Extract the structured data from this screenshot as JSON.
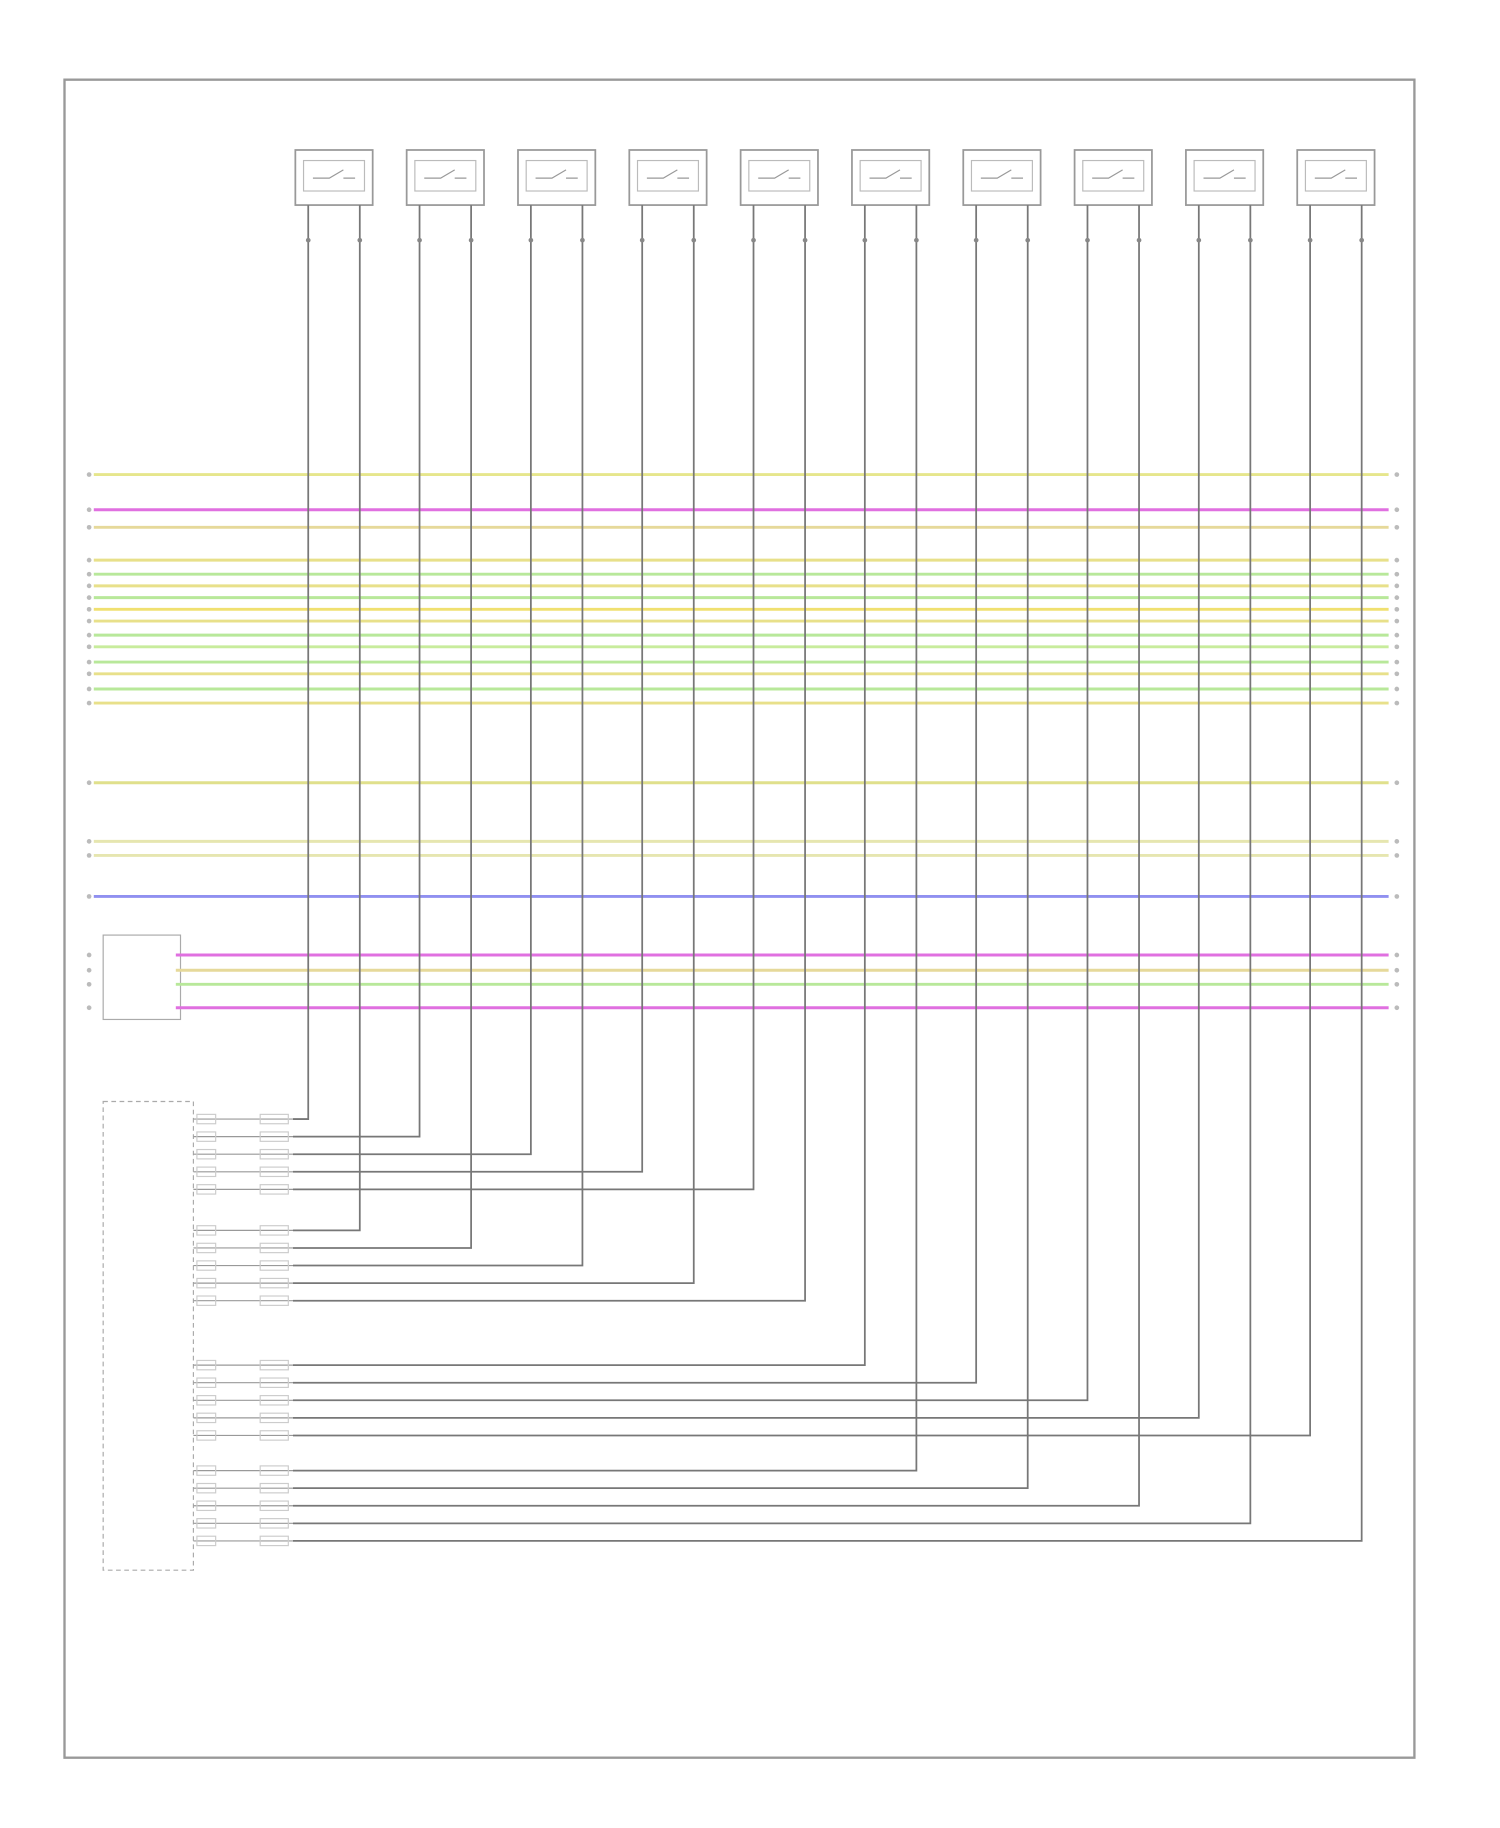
{
  "bus_wires": [
    {
      "color": "#e6e68c"
    },
    {
      "color": "#e070e0"
    },
    {
      "color": "#e6d99a"
    },
    {
      "color": "#e8e08a"
    },
    {
      "color": "#b8e89a"
    },
    {
      "color": "#e8e08a"
    },
    {
      "color": "#b8e89a"
    },
    {
      "color": "#f0e070"
    },
    {
      "color": "#e8e08a"
    },
    {
      "color": "#b8e89a"
    },
    {
      "color": "#c8ec9c"
    },
    {
      "color": "#b8e89a"
    },
    {
      "color": "#e8e08a"
    },
    {
      "color": "#b8e89a"
    },
    {
      "color": "#e8e08a"
    },
    {
      "color": "#e0e08c"
    },
    {
      "color": "#e6e6b0"
    },
    {
      "color": "#e6e6b0"
    },
    {
      "color": "#9090f0"
    },
    {
      "color": "#e070e0"
    },
    {
      "color": "#e6d99a"
    },
    {
      "color": "#b8e89a"
    },
    {
      "color": "#e070e0"
    }
  ]
}
